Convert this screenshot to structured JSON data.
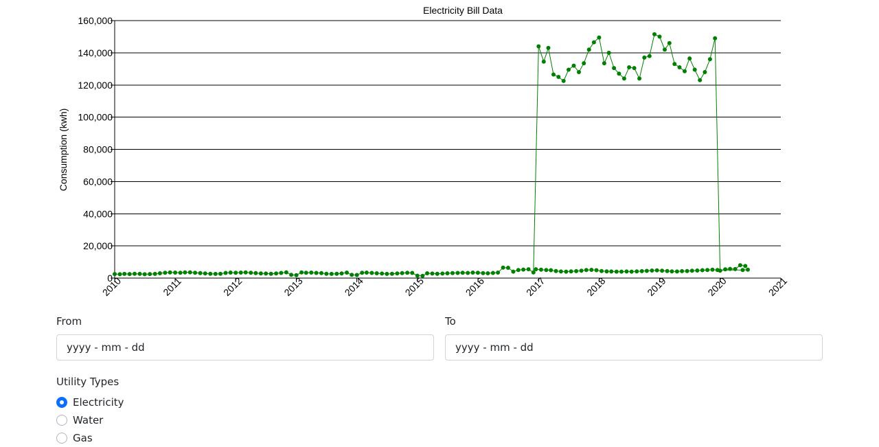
{
  "form": {
    "from_label": "From",
    "to_label": "To",
    "from_placeholder": "yyyy - mm - dd",
    "to_placeholder": "yyyy - mm - dd",
    "utility_types_label": "Utility Types",
    "options": [
      {
        "label": "Electricity",
        "checked": true
      },
      {
        "label": "Water",
        "checked": false
      },
      {
        "label": "Gas",
        "checked": false
      }
    ],
    "accent_color": "#0d6efd"
  },
  "chart_data": {
    "type": "line",
    "title": "Electricity Bill Data",
    "xlabel": "",
    "ylabel": "Consumption (kwh)",
    "xlim": [
      "2010-01-01",
      "2021-01-01"
    ],
    "ylim": [
      0,
      160000
    ],
    "x_ticks": [
      "2010",
      "2011",
      "2012",
      "2013",
      "2014",
      "2015",
      "2016",
      "2017",
      "2018",
      "2019",
      "2020",
      "2021"
    ],
    "y_ticks": [
      "0",
      "20,000",
      "40,000",
      "60,000",
      "80,000",
      "100,000",
      "120,000",
      "140,000",
      "160,000"
    ],
    "grid": true,
    "legend": "none",
    "color": "#008000",
    "series": [
      {
        "points": [
          [
            "2010-01-01",
            2500
          ],
          [
            "2010-02-01",
            2400
          ],
          [
            "2010-03-01",
            2600
          ],
          [
            "2010-04-01",
            2500
          ],
          [
            "2010-05-01",
            2700
          ],
          [
            "2010-06-01",
            2600
          ],
          [
            "2010-07-01",
            2400
          ],
          [
            "2010-08-01",
            2500
          ],
          [
            "2010-09-01",
            2600
          ],
          [
            "2010-10-01",
            3000
          ],
          [
            "2010-11-01",
            3300
          ],
          [
            "2010-12-01",
            3500
          ],
          [
            "2011-01-01",
            3400
          ],
          [
            "2011-02-01",
            3300
          ],
          [
            "2011-03-01",
            3500
          ],
          [
            "2011-04-01",
            3600
          ],
          [
            "2011-05-01",
            3300
          ],
          [
            "2011-06-01",
            3100
          ],
          [
            "2011-07-01",
            2900
          ],
          [
            "2011-08-01",
            2700
          ],
          [
            "2011-09-01",
            2600
          ],
          [
            "2011-10-01",
            2700
          ],
          [
            "2011-11-01",
            3200
          ],
          [
            "2011-12-01",
            3400
          ],
          [
            "2012-01-01",
            3300
          ],
          [
            "2012-02-01",
            3400
          ],
          [
            "2012-03-01",
            3500
          ],
          [
            "2012-04-01",
            3300
          ],
          [
            "2012-05-01",
            3100
          ],
          [
            "2012-06-01",
            2900
          ],
          [
            "2012-07-01",
            2800
          ],
          [
            "2012-08-01",
            2700
          ],
          [
            "2012-09-01",
            2900
          ],
          [
            "2012-10-01",
            3200
          ],
          [
            "2012-11-01",
            3600
          ],
          [
            "2012-12-01",
            2000
          ],
          [
            "2013-01-01",
            1800
          ],
          [
            "2013-02-01",
            3500
          ],
          [
            "2013-03-01",
            3300
          ],
          [
            "2013-04-01",
            3400
          ],
          [
            "2013-05-01",
            3200
          ],
          [
            "2013-06-01",
            3100
          ],
          [
            "2013-07-01",
            2700
          ],
          [
            "2013-08-01",
            2600
          ],
          [
            "2013-09-01",
            2700
          ],
          [
            "2013-10-01",
            2900
          ],
          [
            "2013-11-01",
            3400
          ],
          [
            "2013-12-01",
            2000
          ],
          [
            "2014-01-01",
            1900
          ],
          [
            "2014-02-01",
            3300
          ],
          [
            "2014-03-01",
            3400
          ],
          [
            "2014-04-01",
            3200
          ],
          [
            "2014-05-01",
            3000
          ],
          [
            "2014-06-01",
            2800
          ],
          [
            "2014-07-01",
            2600
          ],
          [
            "2014-08-01",
            2700
          ],
          [
            "2014-09-01",
            2900
          ],
          [
            "2014-10-01",
            3100
          ],
          [
            "2014-11-01",
            3300
          ],
          [
            "2014-12-01",
            3200
          ],
          [
            "2015-01-01",
            1500
          ],
          [
            "2015-02-01",
            1400
          ],
          [
            "2015-03-01",
            3000
          ],
          [
            "2015-04-01",
            2800
          ],
          [
            "2015-05-01",
            2700
          ],
          [
            "2015-06-01",
            2800
          ],
          [
            "2015-07-01",
            3000
          ],
          [
            "2015-08-01",
            3100
          ],
          [
            "2015-09-01",
            3200
          ],
          [
            "2015-10-01",
            3300
          ],
          [
            "2015-11-01",
            3200
          ],
          [
            "2015-12-01",
            3400
          ],
          [
            "2016-01-01",
            3300
          ],
          [
            "2016-02-01",
            3100
          ],
          [
            "2016-03-01",
            3000
          ],
          [
            "2016-04-01",
            3200
          ],
          [
            "2016-05-01",
            3400
          ],
          [
            "2016-06-01",
            6500
          ],
          [
            "2016-07-01",
            6400
          ],
          [
            "2016-08-01",
            4000
          ],
          [
            "2016-09-01",
            5000
          ],
          [
            "2016-10-01",
            5300
          ],
          [
            "2016-11-01",
            5500
          ],
          [
            "2016-12-01",
            3500
          ],
          [
            "2017-01-01",
            144000
          ],
          [
            "2017-02-01",
            134500
          ],
          [
            "2017-03-01",
            143000
          ],
          [
            "2017-04-01",
            126500
          ],
          [
            "2017-05-01",
            125000
          ],
          [
            "2017-06-01",
            122500
          ],
          [
            "2017-07-01",
            129500
          ],
          [
            "2017-08-01",
            132000
          ],
          [
            "2017-09-01",
            128000
          ],
          [
            "2017-10-01",
            133500
          ],
          [
            "2017-11-01",
            142000
          ],
          [
            "2017-12-01",
            146500
          ],
          [
            "2018-01-01",
            149500
          ],
          [
            "2018-02-01",
            133500
          ],
          [
            "2018-03-01",
            140000
          ],
          [
            "2018-04-01",
            130500
          ],
          [
            "2018-05-01",
            127000
          ],
          [
            "2018-06-01",
            124000
          ],
          [
            "2018-07-01",
            131000
          ],
          [
            "2018-08-01",
            130500
          ],
          [
            "2018-09-01",
            124000
          ],
          [
            "2018-10-01",
            137000
          ],
          [
            "2018-11-01",
            138000
          ],
          [
            "2018-12-01",
            151500
          ],
          [
            "2019-01-01",
            150000
          ],
          [
            "2019-02-01",
            142000
          ],
          [
            "2019-03-01",
            146000
          ],
          [
            "2019-04-01",
            133000
          ],
          [
            "2019-05-01",
            131000
          ],
          [
            "2019-06-01",
            128500
          ],
          [
            "2019-07-01",
            136500
          ],
          [
            "2019-08-01",
            129500
          ],
          [
            "2019-09-01",
            123000
          ],
          [
            "2019-10-01",
            128000
          ],
          [
            "2019-11-01",
            136000
          ],
          [
            "2019-12-01",
            149000
          ],
          [
            "2020-01-01",
            4600
          ],
          [
            "2020-02-01",
            5400
          ],
          [
            "2020-03-01",
            5700
          ],
          [
            "2020-04-01",
            5600
          ],
          [
            "2020-05-01",
            8000
          ],
          [
            "2020-06-01",
            7500
          ]
        ]
      },
      {
        "points": [
          [
            "2016-12-16",
            5500
          ],
          [
            "2017-01-16",
            5200
          ],
          [
            "2017-02-16",
            5000
          ],
          [
            "2017-03-16",
            4900
          ],
          [
            "2017-04-16",
            4400
          ],
          [
            "2017-05-16",
            4100
          ],
          [
            "2017-06-16",
            4000
          ],
          [
            "2017-07-16",
            4200
          ],
          [
            "2017-08-16",
            4300
          ],
          [
            "2017-09-16",
            4600
          ],
          [
            "2017-10-16",
            5000
          ],
          [
            "2017-11-16",
            5100
          ],
          [
            "2017-12-16",
            4900
          ],
          [
            "2018-01-16",
            4400
          ],
          [
            "2018-02-16",
            4200
          ],
          [
            "2018-03-16",
            4100
          ],
          [
            "2018-04-16",
            4000
          ],
          [
            "2018-05-16",
            4000
          ],
          [
            "2018-06-16",
            4100
          ],
          [
            "2018-07-16",
            4000
          ],
          [
            "2018-08-16",
            4200
          ],
          [
            "2018-09-16",
            4300
          ],
          [
            "2018-10-16",
            4500
          ],
          [
            "2018-11-16",
            4700
          ],
          [
            "2018-12-16",
            4800
          ],
          [
            "2019-01-16",
            4600
          ],
          [
            "2019-02-16",
            4400
          ],
          [
            "2019-03-16",
            4200
          ],
          [
            "2019-04-16",
            4100
          ],
          [
            "2019-05-16",
            4300
          ],
          [
            "2019-06-16",
            4400
          ],
          [
            "2019-07-16",
            4600
          ],
          [
            "2019-08-16",
            4700
          ],
          [
            "2019-09-16",
            4900
          ],
          [
            "2019-10-16",
            5000
          ],
          [
            "2019-11-16",
            5200
          ],
          [
            "2019-12-16",
            5000
          ],
          [
            "2020-05-16",
            5000
          ],
          [
            "2020-06-16",
            5200
          ]
        ]
      }
    ]
  }
}
